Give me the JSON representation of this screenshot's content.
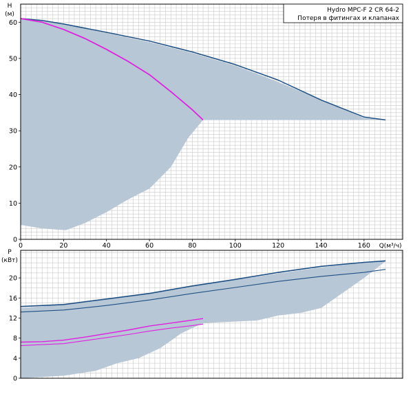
{
  "legend": {
    "line1": "Hydro MPC-F 2 CR 64-2",
    "line2": "Потеря в фитингах и клапанах"
  },
  "colors": {
    "envelope": "#b8c7d6",
    "grid": "#c8c8c8",
    "curve_dark": "#1d4f84",
    "curve_magenta": "#e020e0",
    "axis": "#000000"
  },
  "chart_data": [
    {
      "type": "line",
      "title": "",
      "ylabel_line1": "H",
      "ylabel_line2": "(м)",
      "xlabel": "Q(м³/ч)",
      "xlim": [
        0,
        178
      ],
      "ylim": [
        0,
        65
      ],
      "xticks": [
        0,
        20,
        40,
        60,
        80,
        100,
        120,
        140,
        160
      ],
      "yticks": [
        0,
        10,
        20,
        30,
        40,
        50,
        60
      ],
      "grid": true,
      "legend_position": "top-right",
      "envelope": {
        "name": "operating-range",
        "points": [
          [
            0,
            61
          ],
          [
            10,
            60.5
          ],
          [
            20,
            59.5
          ],
          [
            40,
            57
          ],
          [
            60,
            54.5
          ],
          [
            80,
            51.5
          ],
          [
            100,
            48
          ],
          [
            120,
            43.5
          ],
          [
            140,
            38.5
          ],
          [
            160,
            33.5
          ],
          [
            170,
            33
          ],
          [
            160,
            33
          ],
          [
            125,
            33
          ],
          [
            110,
            33
          ],
          [
            88,
            33
          ],
          [
            85,
            33
          ],
          [
            78,
            28
          ],
          [
            70,
            20
          ],
          [
            60,
            14
          ],
          [
            50,
            11
          ],
          [
            40,
            7.5
          ],
          [
            30,
            4.5
          ],
          [
            21,
            2.5
          ],
          [
            10,
            3
          ],
          [
            0,
            4
          ]
        ]
      },
      "series": [
        {
          "color": "#1d4f84",
          "width": 1.5,
          "x": [
            0,
            10,
            20,
            40,
            60,
            80,
            100,
            120,
            140,
            160,
            170
          ],
          "y": [
            61,
            60.5,
            59.5,
            57.2,
            54.8,
            51.8,
            48.3,
            44,
            38.5,
            33.8,
            33
          ]
        },
        {
          "color": "#e020e0",
          "width": 1.8,
          "x": [
            0,
            10,
            20,
            30,
            40,
            50,
            60,
            70,
            80,
            85
          ],
          "y": [
            61,
            60,
            58,
            55.5,
            52.5,
            49.2,
            45.5,
            40.8,
            35.8,
            33
          ]
        }
      ]
    },
    {
      "type": "line",
      "title": "",
      "ylabel_line1": "P",
      "ylabel_line2": "(кВт)",
      "xlabel": "",
      "xlim": [
        0,
        178
      ],
      "ylim": [
        0,
        25.5
      ],
      "yticks": [
        0,
        4,
        8,
        12,
        16,
        20
      ],
      "grid": true,
      "envelope": {
        "name": "power-range",
        "points": [
          [
            0,
            14
          ],
          [
            20,
            14.7
          ],
          [
            40,
            15.8
          ],
          [
            60,
            17
          ],
          [
            80,
            18.4
          ],
          [
            100,
            19.6
          ],
          [
            120,
            20.9
          ],
          [
            140,
            22.1
          ],
          [
            160,
            23
          ],
          [
            170,
            23.3
          ],
          [
            160,
            20
          ],
          [
            150,
            17
          ],
          [
            140,
            14
          ],
          [
            130,
            13
          ],
          [
            120,
            12.5
          ],
          [
            110,
            11.5
          ],
          [
            85,
            11
          ],
          [
            75,
            9
          ],
          [
            65,
            6
          ],
          [
            55,
            4
          ],
          [
            45,
            3
          ],
          [
            35,
            1.5
          ],
          [
            20,
            0.5
          ],
          [
            0,
            0
          ]
        ]
      },
      "series": [
        {
          "color": "#1d4f84",
          "width": 1.6,
          "x": [
            0,
            20,
            40,
            60,
            80,
            100,
            120,
            140,
            160,
            170
          ],
          "y": [
            14.3,
            14.7,
            15.8,
            16.9,
            18.4,
            19.7,
            21.1,
            22.3,
            23.1,
            23.4
          ]
        },
        {
          "color": "#1d4f84",
          "width": 1.1,
          "x": [
            0,
            20,
            40,
            60,
            80,
            100,
            120,
            140,
            160,
            170
          ],
          "y": [
            13.2,
            13.6,
            14.5,
            15.6,
            16.9,
            18.1,
            19.3,
            20.3,
            21.1,
            21.7
          ]
        },
        {
          "color": "#e020e0",
          "width": 1.4,
          "x": [
            0,
            10,
            20,
            30,
            40,
            50,
            60,
            70,
            80,
            85
          ],
          "y": [
            7.2,
            7.3,
            7.6,
            8.2,
            8.9,
            9.6,
            10.4,
            11,
            11.6,
            11.9
          ]
        },
        {
          "color": "#e020e0",
          "width": 1.1,
          "x": [
            0,
            10,
            20,
            30,
            40,
            50,
            60,
            70,
            80,
            85
          ],
          "y": [
            6.5,
            6.7,
            6.9,
            7.5,
            8.1,
            8.7,
            9.4,
            10,
            10.5,
            10.8
          ]
        }
      ]
    }
  ]
}
